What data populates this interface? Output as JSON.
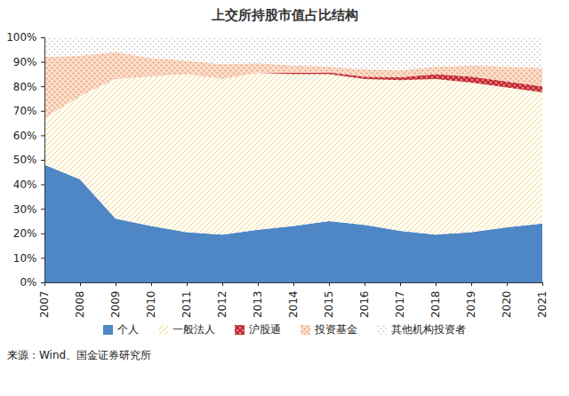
{
  "chart_data": {
    "type": "area",
    "title": "上交所持股市值占比结构",
    "source": "来源：Wind、国金证券研究所",
    "stacked": true,
    "grid": false,
    "legend": "bottom",
    "categories": [
      "2007",
      "2008",
      "2009",
      "2010",
      "2011",
      "2012",
      "2013",
      "2014",
      "2015",
      "2016",
      "2017",
      "2018",
      "2019",
      "2020",
      "2021"
    ],
    "series": [
      {
        "name": "个人",
        "color": "#4f87c6",
        "values": [
          48,
          42,
          26,
          23,
          20.5,
          19.5,
          21.5,
          23,
          25,
          23.5,
          21,
          19.5,
          20.5,
          22.5,
          24
        ]
      },
      {
        "name": "一般法人",
        "color": "#f2d675",
        "values": [
          19,
          34,
          57,
          61,
          64.5,
          63.5,
          64,
          62,
          60,
          59.5,
          61.5,
          63.5,
          61,
          57,
          53.5
        ]
      },
      {
        "name": "沪股通",
        "color": "#c0181f",
        "values": [
          0,
          0,
          0,
          0,
          0,
          0,
          0,
          0.5,
          0.7,
          1,
          1.2,
          2,
          2.5,
          2.5,
          2.5
        ]
      },
      {
        "name": "投资基金",
        "color": "#f0a070",
        "values": [
          25,
          16.5,
          11,
          7.5,
          5.5,
          6,
          4,
          3,
          2.3,
          3,
          2.8,
          3,
          4.5,
          6,
          7.5
        ]
      },
      {
        "name": "其他机构投资者",
        "color": "#b8b8b8",
        "values": [
          8,
          7.5,
          6,
          8.5,
          9.5,
          11,
          10.5,
          11.5,
          12,
          13,
          13.5,
          12,
          11.5,
          12,
          12.5
        ]
      }
    ],
    "ylim": [
      0,
      100
    ],
    "yticks": [
      {
        "value": 0,
        "label": "0%"
      },
      {
        "value": 10,
        "label": "10%"
      },
      {
        "value": 20,
        "label": "20%"
      },
      {
        "value": 30,
        "label": "30%"
      },
      {
        "value": 40,
        "label": "40%"
      },
      {
        "value": 50,
        "label": "50%"
      },
      {
        "value": 60,
        "label": "60%"
      },
      {
        "value": 70,
        "label": "70%"
      },
      {
        "value": 80,
        "label": "80%"
      },
      {
        "value": 90,
        "label": "90%"
      },
      {
        "value": 100,
        "label": "100%"
      }
    ]
  }
}
